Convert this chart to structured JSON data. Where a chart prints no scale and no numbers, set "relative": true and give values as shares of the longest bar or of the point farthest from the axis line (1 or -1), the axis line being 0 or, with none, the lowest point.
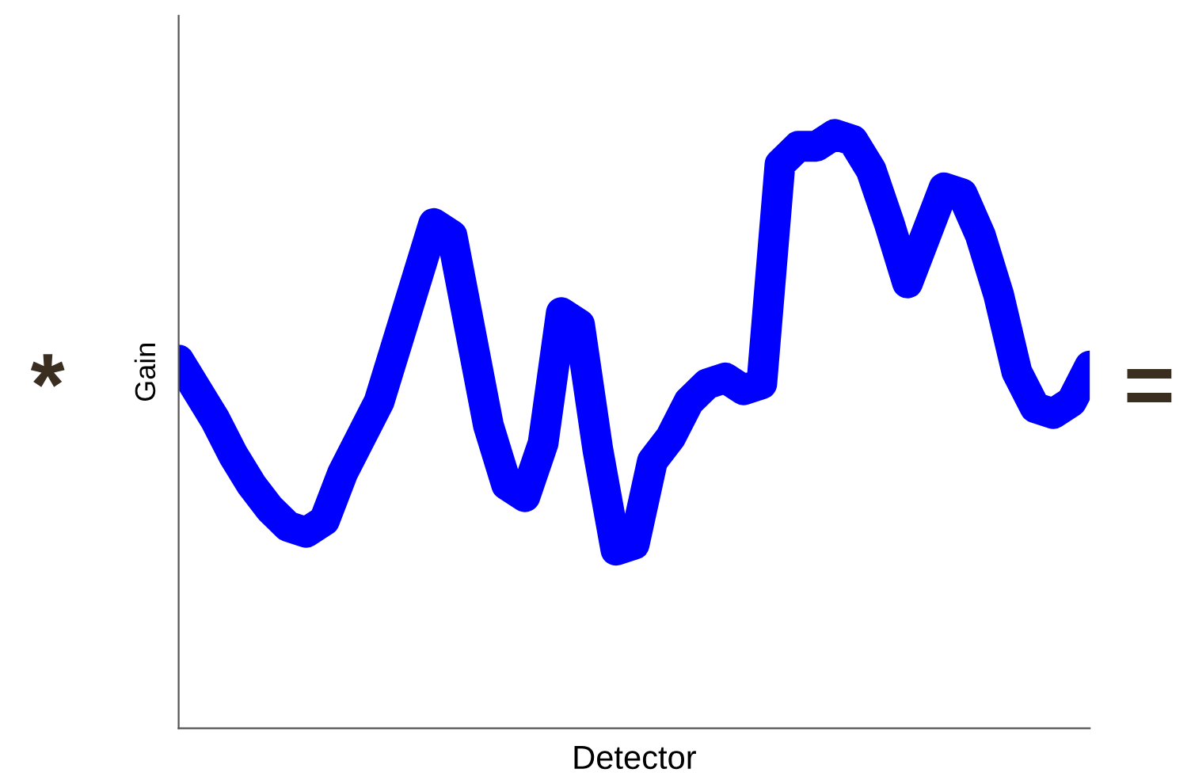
{
  "chart_data": {
    "type": "line",
    "relative": true,
    "xlabel": "Detector",
    "ylabel": "Gain",
    "annotations": [
      "*",
      "="
    ],
    "categories": [
      null,
      null,
      null,
      null,
      null,
      null,
      null,
      null,
      null,
      null,
      null,
      null,
      null,
      null,
      null,
      null,
      null,
      null,
      null,
      null,
      null,
      null,
      null,
      null,
      null,
      null,
      null,
      null,
      null,
      null,
      null,
      null,
      null,
      null,
      null,
      null,
      null,
      null,
      null,
      null,
      null,
      null,
      null,
      null,
      null,
      null,
      null,
      null,
      null,
      null,
      null
    ],
    "series": [
      {
        "color": "#0000ff",
        "values": [
          0.62,
          0.57,
          0.52,
          0.46,
          0.41,
          0.37,
          0.34,
          0.33,
          0.35,
          0.43,
          0.49,
          0.55,
          0.65,
          0.75,
          0.85,
          0.83,
          0.67,
          0.51,
          0.41,
          0.39,
          0.48,
          0.7,
          0.68,
          0.47,
          0.3,
          0.31,
          0.45,
          0.49,
          0.55,
          0.58,
          0.59,
          0.57,
          0.58,
          0.95,
          0.98,
          0.98,
          1,
          0.99,
          0.94,
          0.85,
          0.75,
          0.83,
          0.91,
          0.9,
          0.83,
          0.73,
          0.6,
          0.54,
          0.53,
          0.55,
          0.61
        ]
      }
    ]
  }
}
